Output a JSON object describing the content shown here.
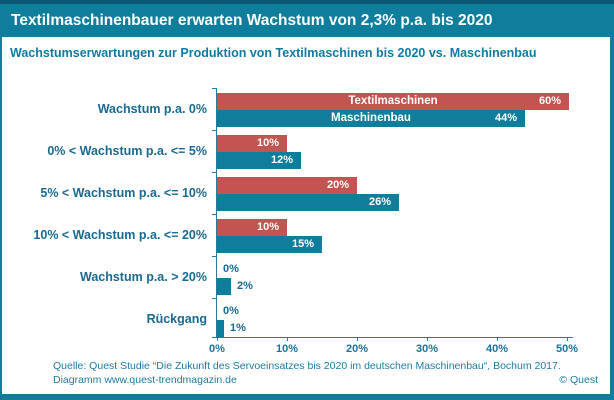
{
  "title": "Textilmaschinenbauer erwarten Wachstum von 2,3% p.a. bis 2020",
  "subtitle": "Wachstumserwartungen zur Produktion von Textilmaschinen bis 2020 vs. Maschinenbau",
  "footer": {
    "line1": "Quelle: Quest Studie “Die Zukunft des Servoeinsatzes bis 2020 im  deutschen Maschinenbau“, Bochum 2017.",
    "line2": "Diagramm  www.quest-trendmagazin.de",
    "copyright": "© Quest"
  },
  "colors": {
    "frame": "#0F7D9C",
    "frame_dark": "#0A5873",
    "title_text": "#FFFFFF",
    "subtitle_text": "#0E7BA4",
    "category_text": "#186A92",
    "bar_red": "#C25551",
    "bar_teal": "#0F7D9C",
    "value_inside": "#FFFFFF",
    "value_outside": "#186A92",
    "axis": "#2B7A9B",
    "tick_text": "#1A7198",
    "footer_text": "#1D7BA1"
  },
  "chart_data": {
    "type": "bar",
    "orientation": "horizontal",
    "title": "Wachstumserwartungen zur Produktion von Textilmaschinen bis 2020 vs. Maschinenbau",
    "categories": [
      "Wachstum p.a. 0%",
      "0% < Wachstum p.a. <= 5%",
      "5% < Wachstum p.a. <= 10%",
      "10% < Wachstum p.a. <= 20%",
      "Wachstum p.a. > 20%",
      "Rückgang"
    ],
    "series": [
      {
        "name": "Textilmaschinen",
        "color": "#C25551",
        "values": [
          60,
          10,
          20,
          10,
          0,
          0
        ]
      },
      {
        "name": "Maschinenbau",
        "color": "#0F7D9C",
        "values": [
          44,
          12,
          26,
          15,
          2,
          1
        ]
      }
    ],
    "x_ticks": [
      "0%",
      "10%",
      "20%",
      "30%",
      "40%",
      "50%"
    ],
    "xlim": [
      0,
      50
    ],
    "value_label_format": "{v}%",
    "legend_position": "inside-first-bars",
    "grid": false
  }
}
